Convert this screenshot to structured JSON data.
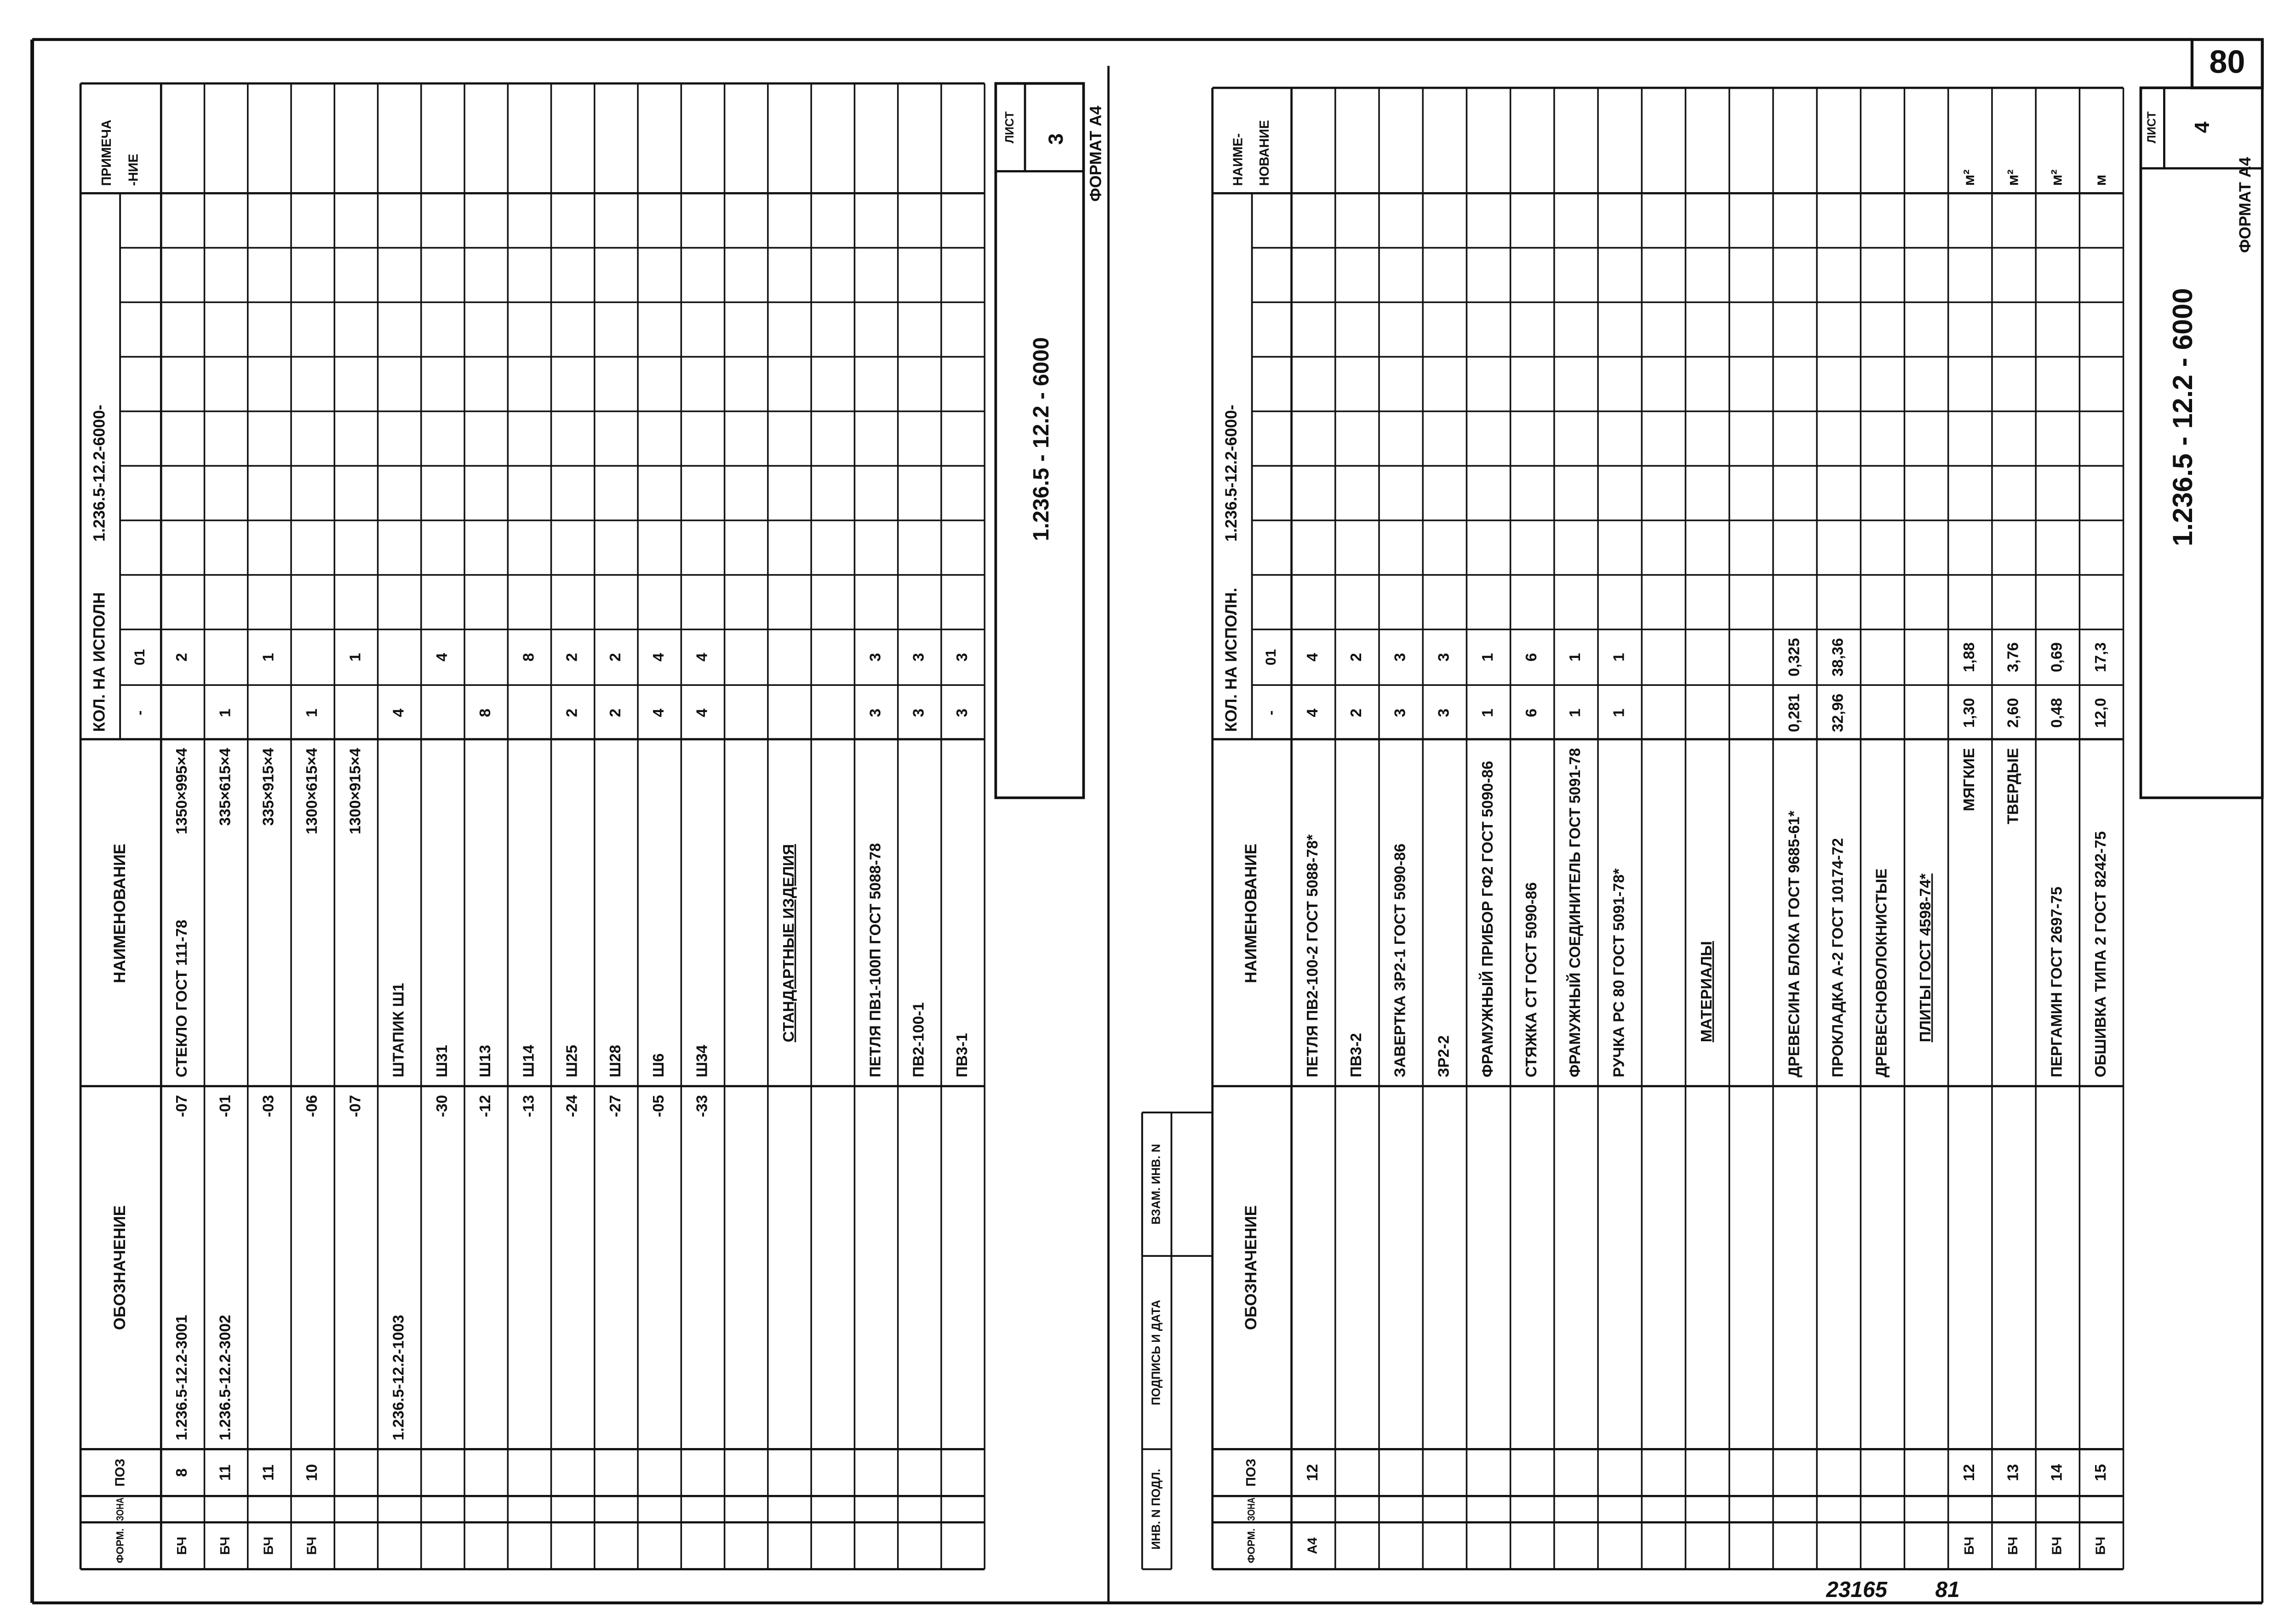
{
  "page_number": "80",
  "sheets": [
    {
      "header": {
        "format": "ФОРМ.",
        "zone": "ЗОНА",
        "pos": "ПОЗ",
        "designation": "ОБОЗНАЧЕНИЕ",
        "name": "НАИМЕНОВАНИЕ",
        "qty": "КОЛ. НА ИСПОЛН",
        "code": "1.236.5-12.2-6000-",
        "variants": [
          "-",
          "01"
        ],
        "note": [
          "ПРИМЕЧА",
          "-НИЕ"
        ]
      },
      "rows": [
        [
          "БЧ",
          null,
          "8",
          "1.236.5-12.2-3001",
          "-07",
          "СТЕКЛО ГОСТ 111-78",
          "1350×995×4",
          null,
          "2",
          null
        ],
        [
          "БЧ",
          null,
          "11",
          "1.236.5-12.2-3002",
          "-01",
          null,
          "335×615×4",
          "1",
          null,
          null
        ],
        [
          "БЧ",
          null,
          "11",
          null,
          "-03",
          null,
          "335×915×4",
          null,
          "1",
          null
        ],
        [
          "БЧ",
          null,
          "10",
          null,
          "-06",
          null,
          "1300×615×4",
          "1",
          null,
          null
        ],
        [
          null,
          null,
          null,
          null,
          "-07",
          null,
          "1300×915×4",
          null,
          "1",
          null
        ],
        [
          null,
          null,
          null,
          "1.236.5-12.2-1003",
          null,
          "ШТАПИК Ш1",
          null,
          "4",
          null,
          null
        ],
        [
          null,
          null,
          null,
          null,
          "-30",
          "Ш31",
          null,
          null,
          "4",
          null
        ],
        [
          null,
          null,
          null,
          null,
          "-12",
          "Ш13",
          null,
          "8",
          null,
          null
        ],
        [
          null,
          null,
          null,
          null,
          "-13",
          "Ш14",
          null,
          null,
          "8",
          null
        ],
        [
          null,
          null,
          null,
          null,
          "-24",
          "Ш25",
          null,
          "2",
          "2",
          null
        ],
        [
          null,
          null,
          null,
          null,
          "-27",
          "Ш28",
          null,
          "2",
          "2",
          null
        ],
        [
          null,
          null,
          null,
          null,
          "-05",
          "Ш6",
          null,
          "4",
          "4",
          null
        ],
        [
          null,
          null,
          null,
          null,
          "-33",
          "Ш34",
          null,
          "4",
          "4",
          null
        ],
        [
          null,
          null,
          null,
          null,
          null,
          null,
          null,
          null,
          null,
          null
        ],
        [
          null,
          null,
          null,
          null,
          null,
          "СТАНДАРТНЫЕ ИЗДЕЛИЯ",
          null,
          null,
          null,
          null
        ],
        [
          null,
          null,
          null,
          null,
          null,
          null,
          null,
          null,
          null,
          null
        ],
        [
          null,
          null,
          null,
          null,
          null,
          "ПЕТЛЯ ПВ1-100П ГОСТ 5088-78",
          null,
          "3",
          "3",
          null
        ],
        [
          null,
          null,
          null,
          null,
          null,
          "ПВ2-100-1",
          null,
          "3",
          "3",
          null
        ],
        [
          null,
          null,
          null,
          null,
          null,
          "ПВ3-1",
          null,
          "3",
          "3",
          null
        ]
      ],
      "stamp": {
        "code": "1.236.5 - 12.2 - 6000",
        "sheet_label": "ЛИСТ",
        "sheet_no": "3",
        "format": "ФОРМАТ А4"
      }
    },
    {
      "side_labels": [
        "ИНВ. N ПОДЛ.",
        "ПОДПИСЬ И ДАТА",
        "ВЗАМ. ИНВ. N"
      ],
      "header": {
        "format": "ФОРМ.",
        "zone": "ЗОНА",
        "pos": "ПОЗ",
        "designation": "ОБОЗНАЧЕНИЕ",
        "name": "НАИМЕНОВАНИЕ",
        "qty": "КОЛ. НА ИСПОЛН.",
        "code": "1.236.5-12.2-6000-",
        "variants": [
          "-",
          "01"
        ],
        "note": [
          "НАИМЕ-",
          "НОВАНИЕ"
        ]
      },
      "rows": [
        [
          "А4",
          null,
          "12",
          null,
          null,
          "ПЕТЛЯ ПВ2-100-2 ГОСТ 5088-78*",
          null,
          "4",
          "4",
          null
        ],
        [
          null,
          null,
          null,
          null,
          null,
          "ПВ3-2",
          null,
          "2",
          "2",
          null
        ],
        [
          null,
          null,
          null,
          null,
          null,
          "ЗАВЕРТКА ЗР2-1 ГОСТ 5090-86",
          null,
          "3",
          "3",
          null
        ],
        [
          null,
          null,
          null,
          null,
          null,
          "ЗР2-2",
          null,
          "3",
          "3",
          null
        ],
        [
          null,
          null,
          null,
          null,
          null,
          "ФРАМУЖНЫЙ ПРИБОР ГФ2 ГОСТ 5090-86",
          null,
          "1",
          "1",
          null
        ],
        [
          null,
          null,
          null,
          null,
          null,
          "СТЯЖКА СТ ГОСТ 5090-86",
          null,
          "6",
          "6",
          null
        ],
        [
          null,
          null,
          null,
          null,
          null,
          "ФРАМУЖНЫЙ СОЕДИНИТЕЛЬ ГОСТ 5091-78",
          null,
          "1",
          "1",
          null
        ],
        [
          null,
          null,
          null,
          null,
          null,
          "РУЧКА РС 80 ГОСТ 5091-78*",
          null,
          "1",
          "1",
          null
        ],
        [
          null,
          null,
          null,
          null,
          null,
          null,
          null,
          null,
          null,
          null
        ],
        [
          null,
          null,
          null,
          null,
          null,
          "МАТЕРИАЛЫ",
          null,
          null,
          null,
          null
        ],
        [
          null,
          null,
          null,
          null,
          null,
          null,
          null,
          null,
          null,
          null
        ],
        [
          null,
          null,
          null,
          null,
          null,
          "ДРЕВЕСИНА БЛОКА ГОСТ 9685-61*",
          null,
          "0,281",
          "0,325",
          null
        ],
        [
          null,
          null,
          null,
          null,
          null,
          "ПРОКЛАДКА А-2 ГОСТ 10174-72",
          null,
          "32,96",
          "38,36",
          null
        ],
        [
          null,
          null,
          null,
          null,
          null,
          "ДРЕВЕСНОВОЛОКНИСТЫЕ",
          null,
          null,
          null,
          null
        ],
        [
          null,
          null,
          null,
          null,
          null,
          "ПЛИТЫ ГОСТ 4598-74*",
          null,
          null,
          null,
          null
        ],
        [
          "БЧ",
          null,
          "12",
          null,
          null,
          null,
          "МЯГКИЕ",
          "1,30",
          "1,88",
          "м²"
        ],
        [
          "БЧ",
          null,
          "13",
          null,
          null,
          null,
          "ТВЕРДЫЕ",
          "2,60",
          "3,76",
          "м²"
        ],
        [
          "БЧ",
          null,
          "14",
          null,
          null,
          "ПЕРГАМИН ГОСТ 2697-75",
          null,
          "0,48",
          "0,69",
          "м²"
        ],
        [
          "БЧ",
          null,
          "15",
          null,
          null,
          "ОБШИВКА ТИПА 2 ГОСТ 8242-75",
          null,
          "12,0",
          "17,3",
          "м"
        ]
      ],
      "stamp": {
        "code": "1.236.5 - 12.2 - 6000",
        "sheet_label": "ЛИСТ",
        "sheet_no": "4",
        "format": "ФОРМАТ А4"
      }
    }
  ],
  "footer": [
    "23165",
    "81"
  ]
}
